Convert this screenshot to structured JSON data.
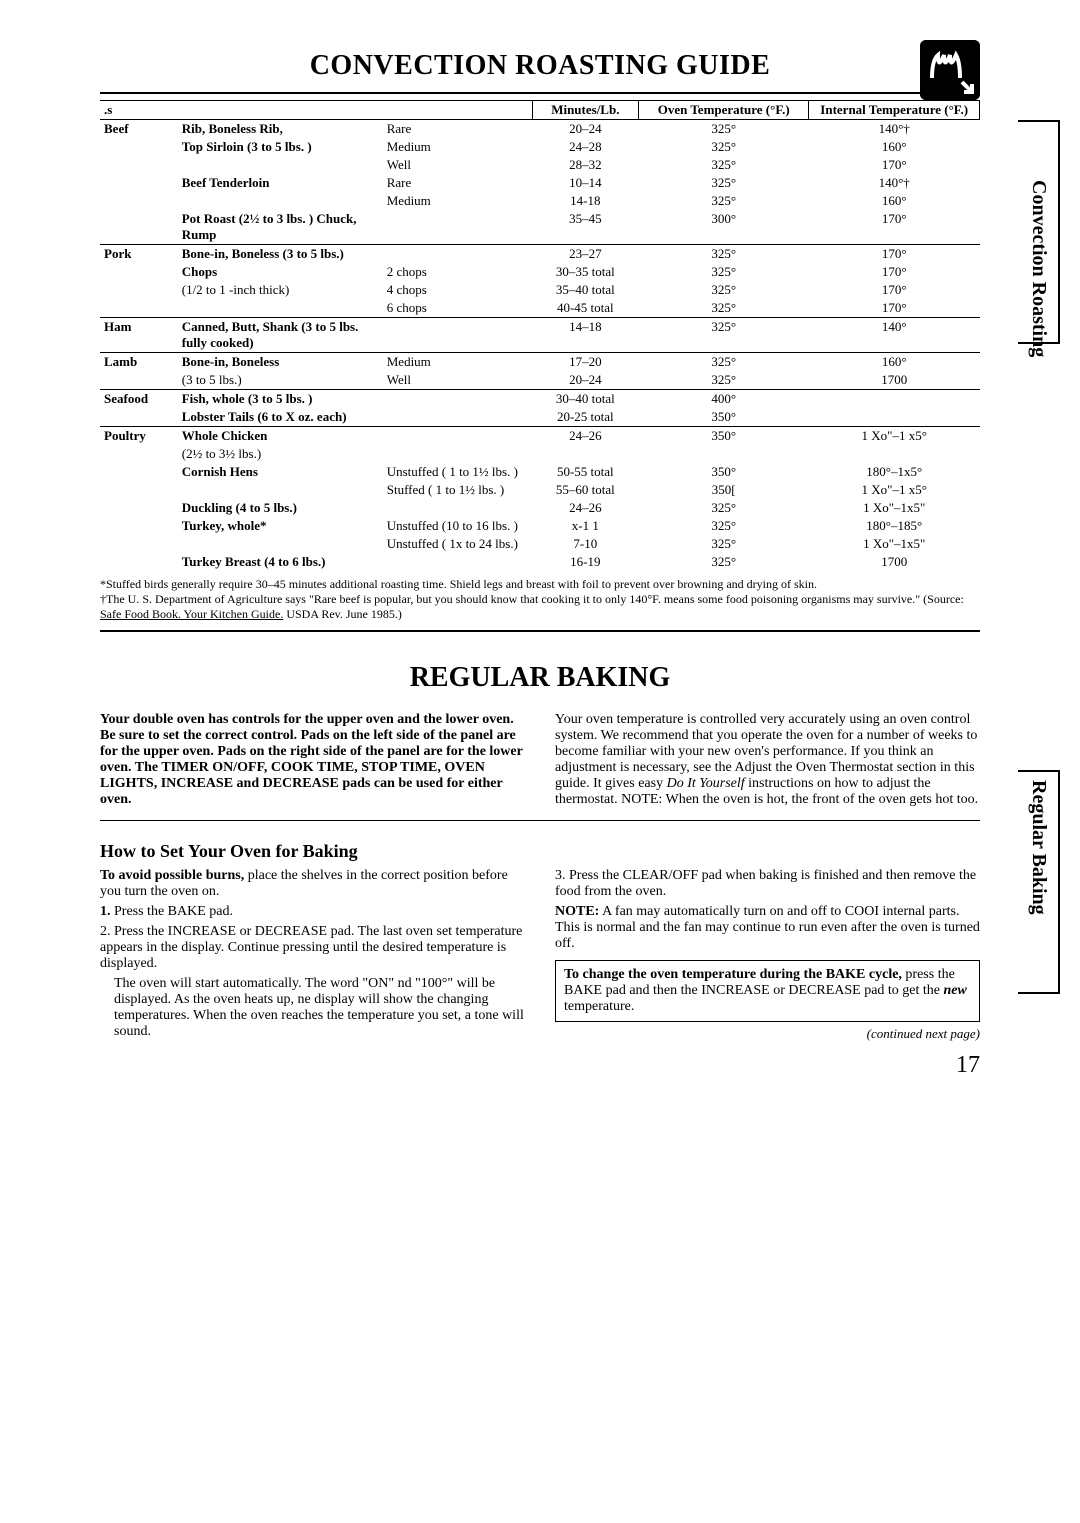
{
  "title_main": "CONVECTION ROASTING GUIDE",
  "side_tab_1": "Convection Roasting",
  "side_tab_2": "Regular Baking",
  "table": {
    "head": {
      "c1": ".s",
      "c2": "Minutes/Lb.",
      "c3": "Oven Temperature (°F.)",
      "c4": "Internal Temperature (°F.)"
    },
    "rows": [
      {
        "section": true,
        "cat": "Beef",
        "cut": "Rib, Boneless Rib,",
        "cutStrong": true,
        "prep": "Rare",
        "min": "20–24",
        "oven": "325°",
        "int": "140°†"
      },
      {
        "cat": "",
        "cut": "Top Sirloin  (3 to 5 lbs. )",
        "cutStrong": true,
        "prep": "Medium",
        "min": "24–28",
        "oven": "325°",
        "int": "160°"
      },
      {
        "cat": "",
        "cut": "",
        "prep": "Well",
        "min": "28–32",
        "oven": "325°",
        "int": "170°"
      },
      {
        "cat": "",
        "cut": "Beef  Tenderloin",
        "cutStrong": true,
        "prep": "Rare",
        "min": "10–14",
        "oven": "325°",
        "int": "140°†"
      },
      {
        "cat": "",
        "cut": "",
        "prep": "Medium",
        "min": "14-18",
        "oven": "325°",
        "int": "160°"
      },
      {
        "cat": "",
        "cut": "Pot Roast  (2½ to 3 lbs. ) Chuck, Rump",
        "cutStrong": true,
        "prep": "",
        "min": "35–45",
        "oven": "300°",
        "int": "170°"
      },
      {
        "section": true,
        "cat": "Pork",
        "cut": "Bone-in, Boneless (3 to 5 lbs.)",
        "cutStrong": true,
        "prep": "",
        "min": "23–27",
        "oven": "325°",
        "int": "170°"
      },
      {
        "cat": "",
        "cut": "Chops",
        "cutStrong": true,
        "prep": "2 chops",
        "min": "30–35 total",
        "oven": "325°",
        "int": "170°"
      },
      {
        "cat": "",
        "cut": "(1/2 to 1 -inch thick)",
        "prep": "4 chops",
        "min": "35–40 total",
        "oven": "325°",
        "int": "170°"
      },
      {
        "cat": "",
        "cut": "",
        "prep": "6 chops",
        "min": "40-45 total",
        "oven": "325°",
        "int": "170°"
      },
      {
        "section": true,
        "cat": "Ham",
        "cut": "Canned, Butt, Shank (3 to 5 lbs. fully cooked)",
        "cutStrong": true,
        "prep": "",
        "min": "14–18",
        "oven": "325°",
        "int": "140°"
      },
      {
        "section": true,
        "cat": "Lamb",
        "cut": "Bone-in,  Boneless",
        "cutStrong": true,
        "prep": "Medium",
        "min": "17–20",
        "oven": "325°",
        "int": "160°"
      },
      {
        "cat": "",
        "cut": "(3 to 5 lbs.)",
        "prep": "Well",
        "min": "20–24",
        "oven": "325°",
        "int": "1700"
      },
      {
        "section": true,
        "cat": "Seafood",
        "cut": "Fish, whole (3 to 5 lbs. )",
        "cutStrong": true,
        "prep": "",
        "min": "30–40 total",
        "oven": "400°",
        "int": ""
      },
      {
        "cat": "",
        "cut": "Lobster Tails (6 to X oz. each)",
        "cutStrong": true,
        "prep": "",
        "min": "20-25 total",
        "oven": "350°",
        "int": ""
      },
      {
        "section": true,
        "cat": "Poultry",
        "cut": "Whole Chicken",
        "cutStrong": true,
        "prep": "",
        "min": "24–26",
        "oven": "350°",
        "int": "1 Xo\"–1 x5°"
      },
      {
        "cat": "",
        "cut": "(2½ to 3½ lbs.)",
        "prep": "",
        "min": "",
        "oven": "",
        "int": ""
      },
      {
        "cat": "",
        "cut": "Cornish Hens",
        "cutStrong": true,
        "prep": "Unstuffed ( 1 to 1½ lbs. )",
        "min": "50-55 total",
        "oven": "350°",
        "int": "180°–1x5°"
      },
      {
        "cat": "",
        "cut": "",
        "prep": "Stuffed ( 1 to 1½ lbs. )",
        "min": "55–60 total",
        "oven": "350[",
        "int": "1 Xo\"–1 x5°"
      },
      {
        "cat": "",
        "cut": "Duckling (4 to 5 lbs.)",
        "cutStrong": true,
        "prep": "",
        "min": "24–26",
        "oven": "325°",
        "int": "1 Xo\"–1x5\""
      },
      {
        "cat": "",
        "cut": "Turkey, whole*",
        "cutStrong": true,
        "prep": "Unstuffed (10 to 16 lbs. )",
        "min": "x-1 1",
        "oven": "325°",
        "int": "180°–185°"
      },
      {
        "cat": "",
        "cut": "",
        "prep": "Unstuffed ( 1x to 24 lbs.)",
        "min": "7-10",
        "oven": "325°",
        "int": "1 Xo\"–1x5\""
      },
      {
        "cat": "",
        "cut": "Turkey Breast (4 to 6 lbs.)",
        "cutStrong": true,
        "prep": "",
        "min": "16-19",
        "oven": "325°",
        "int": "1700"
      }
    ]
  },
  "note1": "*Stuffed birds generally require 30–45 minutes additional roasting time. Shield legs and breast with foil to prevent over browning and drying of skin.",
  "note2a": "†The U. S. Department of Agriculture says \"Rare beef is popular, but you should know that cooking it to only 140°F. means some food poisoning organisms may survive.\" (Source: ",
  "note2b": "Safe Food Book. Your Kitchen Guide.",
  "note2c": " USDA Rev. June 1985.)",
  "title2_a": "REGULAR ",
  "title2_b": "BAKING",
  "para_left": "Your double oven has controls for the upper oven and the lower oven. Be sure to set the correct control. Pads on the left side of the panel are for the upper oven. Pads on the right side of the panel are for the lower oven. The TIMER ON/OFF, COOK TIME, STOP TIME, OVEN LIGHTS, INCREASE and DECREASE pads can be used for either oven.",
  "para_right_a": "Your oven temperature is controlled very accurately using an oven control system. We recommend that you operate the oven for a number of weeks to become familiar with your new oven's performance. If you think an adjustment is necessary, see the Adjust the Oven Thermostat section in this guide. It gives easy ",
  "para_right_b": "Do It Yourself",
  "para_right_c": " instructions on how to adjust the thermostat. NOTE: When the oven is hot, the front of the oven gets hot too.",
  "subhead": "How to Set Your Oven for Baking",
  "left2_a": "To avoid possible burns, ",
  "left2_b": "place the shelves in the correct position before you turn the oven on.",
  "step1_a": "1. ",
  "step1_b": "Press the BAKE pad.",
  "step2": "2. Press the INCREASE or DECREASE pad. The last oven set temperature appears in the display. Continue pressing until the desired temperature is displayed.",
  "step2b": "The oven will start automatically. The word \"ON\" nd \"100°\" will be displayed. As the oven heats up, ne display will show the changing temperatures. When the oven reaches the temperature you set, a tone will sound.",
  "right2_a": "3. Press the CLEAR/OFF pad when baking is finished and then remove the food from the oven.",
  "right2_b_l": "NOTE:",
  "right2_b": " A fan may automatically turn on and off to COOI internal parts. This is normal and the fan may continue to run even after the oven is turned off.",
  "box_a": "To change the oven temperature during the BAKE cycle, ",
  "box_b": "press the BAKE pad and then the INCREASE or DECREASE pad to get the ",
  "box_c": "new",
  "box_d": " temperature.",
  "continued": "(continued next page)",
  "pagenum": "17"
}
